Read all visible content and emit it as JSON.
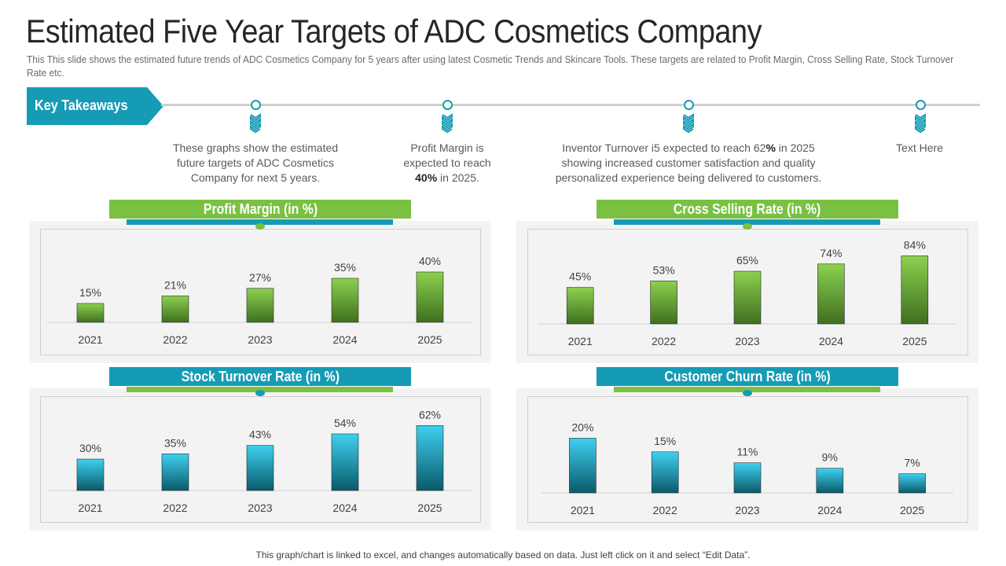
{
  "title": "Estimated Five Year Targets of ADC Cosmetics Company",
  "subtitle": "This This slide shows the estimated future trends of ADC Cosmetics Company for 5 years after using latest Cosmetic Trends and Skincare Tools. These targets are related to Profit Margin, Cross Selling Rate, Stock Turnover Rate etc.",
  "key_takeaways": {
    "label": "Key Takeaways",
    "items": [
      "These graphs show the estimated future targets of ADC Cosmetics Company for next 5 years.",
      "Profit Margin is expected to reach 40% in 2025.",
      "Inventor Turnover i5 expected to reach 62% in 2025 showing increased customer satisfaction and quality personalized experience being delivered to customers.",
      "Text Here"
    ]
  },
  "colors": {
    "accent_blue": "#169bb5",
    "accent_green": "#7ac143",
    "green_bar_top": "#8cd14f",
    "green_bar_bottom": "#3f6f1f",
    "blue_bar_top": "#3fd0f0",
    "blue_bar_bottom": "#0a5a6a"
  },
  "chart_data": [
    {
      "type": "bar",
      "title": "Profit Margin (in %)",
      "categories": [
        "2021",
        "2022",
        "2023",
        "2024",
        "2025"
      ],
      "values": [
        15,
        21,
        27,
        35,
        40
      ],
      "value_labels": [
        "15%",
        "21%",
        "27%",
        "35%",
        "40%"
      ],
      "ylim": [
        0,
        50
      ],
      "style": "green"
    },
    {
      "type": "bar",
      "title": "Cross Selling Rate (in %)",
      "categories": [
        "2021",
        "2022",
        "2023",
        "2024",
        "2025"
      ],
      "values": [
        45,
        53,
        65,
        74,
        84
      ],
      "value_labels": [
        "45%",
        "53%",
        "65%",
        "74%",
        "84%"
      ],
      "ylim": [
        0,
        100
      ],
      "style": "green"
    },
    {
      "type": "bar",
      "title": "Stock Turnover Rate (in %)",
      "categories": [
        "2021",
        "2022",
        "2023",
        "2024",
        "2025"
      ],
      "values": [
        30,
        35,
        43,
        54,
        62
      ],
      "value_labels": [
        "30%",
        "35%",
        "43%",
        "54%",
        "62%"
      ],
      "ylim": [
        0,
        75
      ],
      "style": "blue"
    },
    {
      "type": "bar",
      "title": "Customer Churn Rate (in %)",
      "categories": [
        "2021",
        "2022",
        "2023",
        "2024",
        "2025"
      ],
      "values": [
        20,
        15,
        11,
        9,
        7
      ],
      "value_labels": [
        "20%",
        "15%",
        "11%",
        "9%",
        "7%"
      ],
      "ylim": [
        0,
        25
      ],
      "style": "blue"
    }
  ],
  "footer": "This graph/chart is linked to excel, and changes automatically based on data. Just left click on it and select “Edit Data”."
}
